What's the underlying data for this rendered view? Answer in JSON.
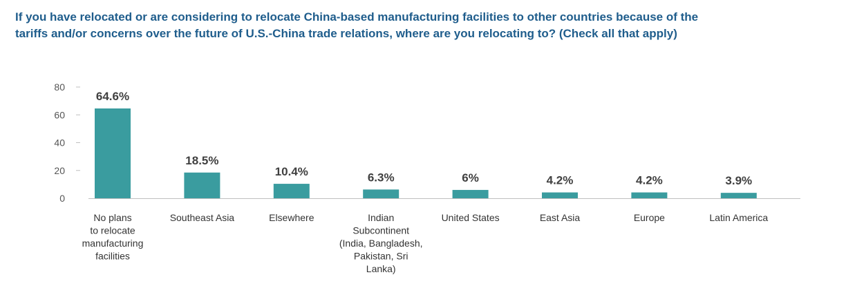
{
  "chart_data": {
    "type": "bar",
    "title_lines": [
      "If you have relocated or are considering to relocate China-based manufacturing facilities to other countries because of the",
      "tariffs and/or concerns over the future of U.S.-China trade relations, where are you relocating to? (Check all that apply)"
    ],
    "categories": [
      [
        "No plans",
        "to relocate",
        "manufacturing",
        "facilities"
      ],
      [
        "Southeast Asia"
      ],
      [
        "Elsewhere"
      ],
      [
        "Indian",
        "Subcontinent",
        "(India, Bangladesh,",
        "Pakistan, Sri",
        "Lanka)"
      ],
      [
        "United States"
      ],
      [
        "East Asia"
      ],
      [
        "Europe"
      ],
      [
        "Latin America"
      ]
    ],
    "values": [
      64.6,
      18.5,
      10.4,
      6.3,
      6,
      4.2,
      4.2,
      3.9
    ],
    "data_labels": [
      "64.6%",
      "18.5%",
      "10.4%",
      "6.3%",
      "6%",
      "4.2%",
      "4.2%",
      "3.9%"
    ],
    "y_ticks": [
      "0",
      "20",
      "40",
      "60",
      "80"
    ],
    "ylim": [
      0,
      80
    ],
    "xlabel": "",
    "ylabel": "",
    "grid": false,
    "colors": {
      "bar": "#3a9c9f",
      "title": "#1f5d8c",
      "axis": "#bfbfbf"
    }
  }
}
